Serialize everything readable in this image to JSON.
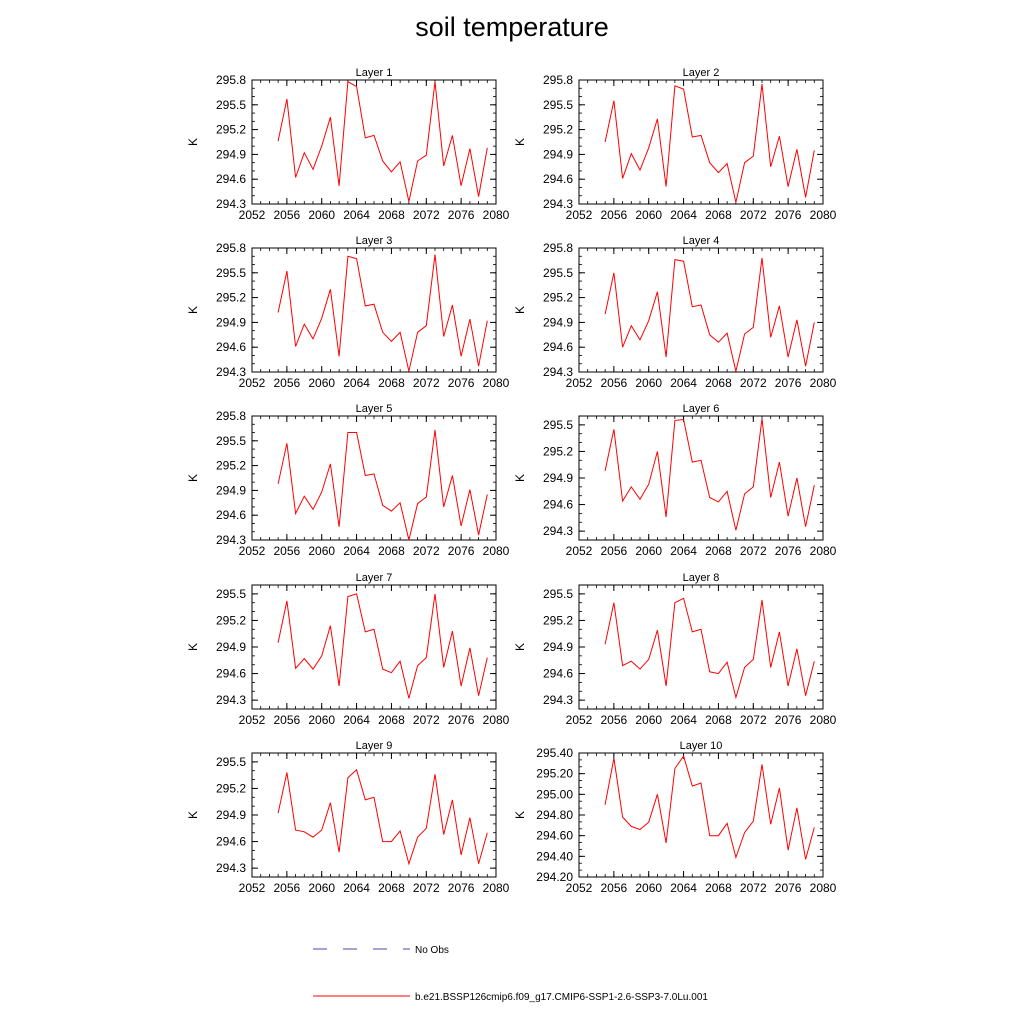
{
  "title": "soil temperature",
  "legend": {
    "obs_label": "No Obs",
    "obs_color": "#4a4aa8",
    "model_label": "b.e21.BSSP126cmip6.f09_g17.CMIP6-SSP1-2.6-SSP3-7.0Lu.001",
    "model_color": "#ff0000"
  },
  "chart_data": [
    {
      "type": "line",
      "title": "Layer 1",
      "ylabel": "K",
      "xlabel": "",
      "xlim": [
        2052,
        2080
      ],
      "ylim": [
        294.3,
        295.8
      ],
      "xticks": [
        "2052",
        "2056",
        "2060",
        "2064",
        "2068",
        "2072",
        "2076",
        "2080"
      ],
      "yticks": [
        "294.3",
        "294.6",
        "294.9",
        "295.2",
        "295.5",
        "295.8"
      ],
      "series": [
        {
          "color": "#ff0000",
          "x": [
            2055,
            2056,
            2057,
            2058,
            2059,
            2060,
            2061,
            2062,
            2063,
            2064,
            2065,
            2066,
            2067,
            2068,
            2069,
            2070,
            2071,
            2072,
            2073,
            2074,
            2075,
            2076,
            2077,
            2078,
            2079
          ],
          "values": [
            295.06,
            295.57,
            294.62,
            294.92,
            294.72,
            295.0,
            295.35,
            294.52,
            295.78,
            295.72,
            295.1,
            295.13,
            294.82,
            294.69,
            294.81,
            294.33,
            294.82,
            294.89,
            295.78,
            294.76,
            295.13,
            294.52,
            294.97,
            294.39,
            294.98
          ]
        }
      ]
    },
    {
      "type": "line",
      "title": "Layer 2",
      "ylabel": "K",
      "xlabel": "",
      "xlim": [
        2052,
        2080
      ],
      "ylim": [
        294.3,
        295.8
      ],
      "xticks": [
        "2052",
        "2056",
        "2060",
        "2064",
        "2068",
        "2072",
        "2076",
        "2080"
      ],
      "yticks": [
        "294.3",
        "294.6",
        "294.9",
        "295.2",
        "295.5",
        "295.8"
      ],
      "series": [
        {
          "color": "#ff0000",
          "x": [
            2055,
            2056,
            2057,
            2058,
            2059,
            2060,
            2061,
            2062,
            2063,
            2064,
            2065,
            2066,
            2067,
            2068,
            2069,
            2070,
            2071,
            2072,
            2073,
            2074,
            2075,
            2076,
            2077,
            2078,
            2079
          ],
          "values": [
            295.05,
            295.55,
            294.61,
            294.91,
            294.71,
            294.98,
            295.33,
            294.51,
            295.73,
            295.69,
            295.11,
            295.13,
            294.8,
            294.68,
            294.79,
            294.32,
            294.8,
            294.88,
            295.75,
            294.75,
            295.12,
            294.51,
            294.96,
            294.38,
            294.95
          ]
        }
      ]
    },
    {
      "type": "line",
      "title": "Layer 3",
      "ylabel": "K",
      "xlabel": "",
      "xlim": [
        2052,
        2080
      ],
      "ylim": [
        294.3,
        295.8
      ],
      "xticks": [
        "2052",
        "2056",
        "2060",
        "2064",
        "2068",
        "2072",
        "2076",
        "2080"
      ],
      "yticks": [
        "294.3",
        "294.6",
        "294.9",
        "295.2",
        "295.5",
        "295.8"
      ],
      "series": [
        {
          "color": "#ff0000",
          "x": [
            2055,
            2056,
            2057,
            2058,
            2059,
            2060,
            2061,
            2062,
            2063,
            2064,
            2065,
            2066,
            2067,
            2068,
            2069,
            2070,
            2071,
            2072,
            2073,
            2074,
            2075,
            2076,
            2077,
            2078,
            2079
          ],
          "values": [
            295.02,
            295.52,
            294.61,
            294.88,
            294.7,
            294.95,
            295.3,
            294.49,
            295.7,
            295.67,
            295.1,
            295.12,
            294.78,
            294.67,
            294.78,
            294.31,
            294.78,
            294.86,
            295.72,
            294.73,
            295.11,
            294.49,
            294.94,
            294.37,
            294.92
          ]
        }
      ]
    },
    {
      "type": "line",
      "title": "Layer 4",
      "ylabel": "K",
      "xlabel": "",
      "xlim": [
        2052,
        2080
      ],
      "ylim": [
        294.3,
        295.8
      ],
      "xticks": [
        "2052",
        "2056",
        "2060",
        "2064",
        "2068",
        "2072",
        "2076",
        "2080"
      ],
      "yticks": [
        "294.3",
        "294.6",
        "294.9",
        "295.2",
        "295.5",
        "295.8"
      ],
      "series": [
        {
          "color": "#ff0000",
          "x": [
            2055,
            2056,
            2057,
            2058,
            2059,
            2060,
            2061,
            2062,
            2063,
            2064,
            2065,
            2066,
            2067,
            2068,
            2069,
            2070,
            2071,
            2072,
            2073,
            2074,
            2075,
            2076,
            2077,
            2078,
            2079
          ],
          "values": [
            295.0,
            295.5,
            294.6,
            294.86,
            294.69,
            294.92,
            295.27,
            294.48,
            295.66,
            295.64,
            295.09,
            295.11,
            294.75,
            294.66,
            294.77,
            294.31,
            294.76,
            294.84,
            295.68,
            294.72,
            295.1,
            294.48,
            294.93,
            294.37,
            294.9
          ]
        }
      ]
    },
    {
      "type": "line",
      "title": "Layer 5",
      "ylabel": "K",
      "xlabel": "",
      "xlim": [
        2052,
        2080
      ],
      "ylim": [
        294.3,
        295.8
      ],
      "xticks": [
        "2052",
        "2056",
        "2060",
        "2064",
        "2068",
        "2072",
        "2076",
        "2080"
      ],
      "yticks": [
        "294.3",
        "294.6",
        "294.9",
        "295.2",
        "295.5",
        "295.8"
      ],
      "series": [
        {
          "color": "#ff0000",
          "x": [
            2055,
            2056,
            2057,
            2058,
            2059,
            2060,
            2061,
            2062,
            2063,
            2064,
            2065,
            2066,
            2067,
            2068,
            2069,
            2070,
            2071,
            2072,
            2073,
            2074,
            2075,
            2076,
            2077,
            2078,
            2079
          ],
          "values": [
            294.98,
            295.47,
            294.62,
            294.83,
            294.67,
            294.88,
            295.22,
            294.46,
            295.6,
            295.6,
            295.08,
            295.1,
            294.72,
            294.65,
            294.75,
            294.3,
            294.74,
            294.82,
            295.63,
            294.7,
            295.08,
            294.47,
            294.91,
            294.36,
            294.85
          ]
        }
      ]
    },
    {
      "type": "line",
      "title": "Layer 6",
      "ylabel": "K",
      "xlabel": "",
      "xlim": [
        2052,
        2080
      ],
      "ylim": [
        294.2,
        295.6
      ],
      "xticks": [
        "2052",
        "2056",
        "2060",
        "2064",
        "2068",
        "2072",
        "2076",
        "2080"
      ],
      "yticks": [
        "294.3",
        "294.6",
        "294.9",
        "295.2",
        "295.5"
      ],
      "series": [
        {
          "color": "#ff0000",
          "x": [
            2055,
            2056,
            2057,
            2058,
            2059,
            2060,
            2061,
            2062,
            2063,
            2064,
            2065,
            2066,
            2067,
            2068,
            2069,
            2070,
            2071,
            2072,
            2073,
            2074,
            2075,
            2076,
            2077,
            2078,
            2079
          ],
          "values": [
            294.98,
            295.45,
            294.64,
            294.8,
            294.66,
            294.83,
            295.2,
            294.46,
            295.55,
            295.56,
            295.08,
            295.1,
            294.68,
            294.63,
            294.75,
            294.31,
            294.72,
            294.8,
            295.57,
            294.68,
            295.08,
            294.47,
            294.9,
            294.35,
            294.82
          ]
        }
      ]
    },
    {
      "type": "line",
      "title": "Layer 7",
      "ylabel": "K",
      "xlabel": "",
      "xlim": [
        2052,
        2080
      ],
      "ylim": [
        294.2,
        295.6
      ],
      "xticks": [
        "2052",
        "2056",
        "2060",
        "2064",
        "2068",
        "2072",
        "2076",
        "2080"
      ],
      "yticks": [
        "294.3",
        "294.6",
        "294.9",
        "295.2",
        "295.5"
      ],
      "series": [
        {
          "color": "#ff0000",
          "x": [
            2055,
            2056,
            2057,
            2058,
            2059,
            2060,
            2061,
            2062,
            2063,
            2064,
            2065,
            2066,
            2067,
            2068,
            2069,
            2070,
            2071,
            2072,
            2073,
            2074,
            2075,
            2076,
            2077,
            2078,
            2079
          ],
          "values": [
            294.95,
            295.42,
            294.66,
            294.77,
            294.65,
            294.8,
            295.14,
            294.46,
            295.47,
            295.5,
            295.07,
            295.1,
            294.65,
            294.61,
            294.74,
            294.32,
            294.69,
            294.78,
            295.5,
            294.67,
            295.08,
            294.46,
            294.89,
            294.35,
            294.78
          ]
        }
      ]
    },
    {
      "type": "line",
      "title": "Layer 8",
      "ylabel": "K",
      "xlabel": "",
      "xlim": [
        2052,
        2080
      ],
      "ylim": [
        294.2,
        295.6
      ],
      "xticks": [
        "2052",
        "2056",
        "2060",
        "2064",
        "2068",
        "2072",
        "2076",
        "2080"
      ],
      "yticks": [
        "294.3",
        "294.6",
        "294.9",
        "295.2",
        "295.5"
      ],
      "series": [
        {
          "color": "#ff0000",
          "x": [
            2055,
            2056,
            2057,
            2058,
            2059,
            2060,
            2061,
            2062,
            2063,
            2064,
            2065,
            2066,
            2067,
            2068,
            2069,
            2070,
            2071,
            2072,
            2073,
            2074,
            2075,
            2076,
            2077,
            2078,
            2079
          ],
          "values": [
            294.93,
            295.4,
            294.69,
            294.74,
            294.65,
            294.76,
            295.09,
            294.46,
            295.4,
            295.45,
            295.07,
            295.1,
            294.62,
            294.6,
            294.73,
            294.33,
            294.67,
            294.76,
            295.43,
            294.67,
            295.07,
            294.46,
            294.88,
            294.35,
            294.74
          ]
        }
      ]
    },
    {
      "type": "line",
      "title": "Layer 9",
      "ylabel": "K",
      "xlabel": "",
      "xlim": [
        2052,
        2080
      ],
      "ylim": [
        294.2,
        295.6
      ],
      "xticks": [
        "2052",
        "2056",
        "2060",
        "2064",
        "2068",
        "2072",
        "2076",
        "2080"
      ],
      "yticks": [
        "294.3",
        "294.6",
        "294.9",
        "295.2",
        "295.5"
      ],
      "series": [
        {
          "color": "#ff0000",
          "x": [
            2055,
            2056,
            2057,
            2058,
            2059,
            2060,
            2061,
            2062,
            2063,
            2064,
            2065,
            2066,
            2067,
            2068,
            2069,
            2070,
            2071,
            2072,
            2073,
            2074,
            2075,
            2076,
            2077,
            2078,
            2079
          ],
          "values": [
            294.92,
            295.38,
            294.73,
            294.71,
            294.65,
            294.73,
            295.04,
            294.48,
            295.32,
            295.41,
            295.07,
            295.1,
            294.6,
            294.6,
            294.72,
            294.35,
            294.65,
            294.75,
            295.36,
            294.68,
            295.07,
            294.45,
            294.87,
            294.35,
            294.7
          ]
        }
      ]
    },
    {
      "type": "line",
      "title": "Layer 10",
      "ylabel": "K",
      "xlabel": "",
      "xlim": [
        2052,
        2080
      ],
      "ylim": [
        294.2,
        295.4
      ],
      "xticks": [
        "2052",
        "2056",
        "2060",
        "2064",
        "2068",
        "2072",
        "2076",
        "2080"
      ],
      "yticks": [
        "294.20",
        "294.40",
        "294.60",
        "294.80",
        "295.00",
        "295.20",
        "295.40"
      ],
      "series": [
        {
          "color": "#ff0000",
          "x": [
            2055,
            2056,
            2057,
            2058,
            2059,
            2060,
            2061,
            2062,
            2063,
            2064,
            2065,
            2066,
            2067,
            2068,
            2069,
            2070,
            2071,
            2072,
            2073,
            2074,
            2075,
            2076,
            2077,
            2078,
            2079
          ],
          "values": [
            294.9,
            295.35,
            294.78,
            294.69,
            294.66,
            294.73,
            295.0,
            294.53,
            295.25,
            295.37,
            295.08,
            295.11,
            294.6,
            294.6,
            294.72,
            294.39,
            294.63,
            294.74,
            295.29,
            294.71,
            295.06,
            294.46,
            294.87,
            294.37,
            294.68
          ]
        }
      ]
    }
  ]
}
